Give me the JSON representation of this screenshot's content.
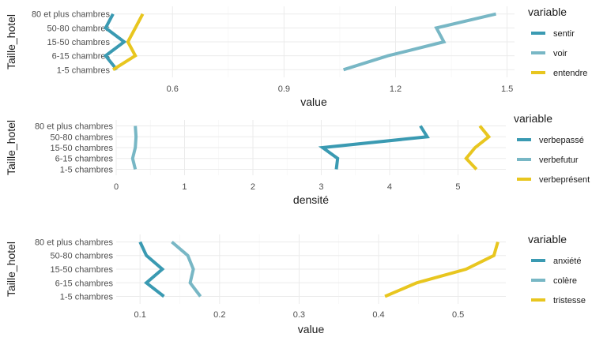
{
  "chart_data": [
    {
      "type": "line",
      "orientation": "horizontal",
      "ylabel": "Taille_hotel",
      "xlabel": "value",
      "categories": [
        "1-5 chambres",
        "6-15 chambres",
        "15-50 chambres",
        "50-80 chambres",
        "80 et plus chambres"
      ],
      "xlim": [
        0.44,
        1.52
      ],
      "xticks": [
        0.6,
        0.9,
        1.2,
        1.5
      ],
      "xtick_labels": [
        "0.6",
        "0.9",
        "1.2",
        "1.5"
      ],
      "grid": true,
      "legend_title": "variable",
      "legend_position": "right",
      "series": [
        {
          "name": "sentir",
          "color": "#3a9ab2",
          "values": [
            0.45,
            0.42,
            0.47,
            0.42,
            0.44
          ]
        },
        {
          "name": "voir",
          "color": "#78b7c5",
          "values": [
            1.06,
            1.18,
            1.33,
            1.31,
            1.47
          ]
        },
        {
          "name": "entendre",
          "color": "#e8c61f",
          "values": [
            0.44,
            0.5,
            0.48,
            0.5,
            0.52
          ]
        }
      ]
    },
    {
      "type": "line",
      "orientation": "horizontal",
      "ylabel": "Taille_hotel",
      "xlabel": "densité",
      "categories": [
        "1-5 chambres",
        "6-15 chambres",
        "15-50 chambres",
        "50-80 chambres",
        "80 et plus chambres"
      ],
      "xlim": [
        0,
        5.7
      ],
      "xticks": [
        0,
        1,
        2,
        3,
        4,
        5
      ],
      "xtick_labels": [
        "0",
        "1",
        "2",
        "3",
        "4",
        "5"
      ],
      "grid": true,
      "legend_title": "variable",
      "legend_position": "right",
      "series": [
        {
          "name": "verbepassé",
          "color": "#3a9ab2",
          "values": [
            3.22,
            3.24,
            3.02,
            4.55,
            4.45
          ]
        },
        {
          "name": "verbefutur",
          "color": "#78b7c5",
          "values": [
            0.28,
            0.24,
            0.28,
            0.29,
            0.28
          ]
        },
        {
          "name": "verbeprésent",
          "color": "#e8c61f",
          "values": [
            5.27,
            5.12,
            5.25,
            5.45,
            5.32
          ]
        }
      ]
    },
    {
      "type": "line",
      "orientation": "horizontal",
      "ylabel": "Taille_hotel",
      "xlabel": "value",
      "categories": [
        "1-5 chambres",
        "6-15 chambres",
        "15-50 chambres",
        "50-80 chambres",
        "80 et plus chambres"
      ],
      "xlim": [
        0.07,
        0.56
      ],
      "xticks": [
        0.1,
        0.2,
        0.3,
        0.4,
        0.5
      ],
      "xtick_labels": [
        "0.1",
        "0.2",
        "0.3",
        "0.4",
        "0.5"
      ],
      "grid": true,
      "legend_title": "variable",
      "legend_position": "right",
      "series": [
        {
          "name": "anxiété",
          "color": "#3a9ab2",
          "values": [
            0.13,
            0.108,
            0.128,
            0.108,
            0.1
          ]
        },
        {
          "name": "colère",
          "color": "#78b7c5",
          "values": [
            0.176,
            0.163,
            0.167,
            0.16,
            0.14
          ]
        },
        {
          "name": "tristesse",
          "color": "#e8c61f",
          "values": [
            0.408,
            0.448,
            0.51,
            0.545,
            0.55
          ]
        }
      ]
    }
  ]
}
